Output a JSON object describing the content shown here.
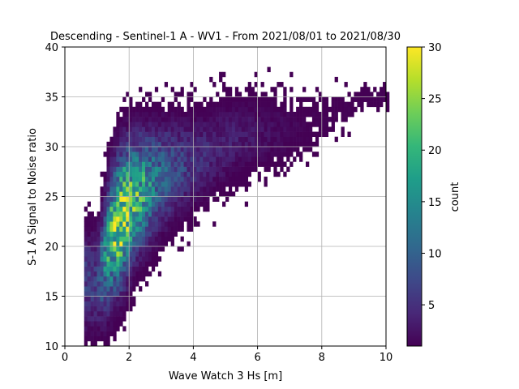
{
  "chart_data": {
    "type": "heatmap",
    "title": "Descending - Sentinel-1 A - WV1 - From 2021/08/01 to 2021/08/30",
    "xlabel": "Wave Watch 3 Hs [m]",
    "ylabel": "S-1 A Signal to Noise ratio",
    "xlim": [
      0,
      10
    ],
    "ylim": [
      10,
      40
    ],
    "xticks": [
      0,
      2,
      4,
      6,
      8,
      10
    ],
    "yticks": [
      10,
      15,
      20,
      25,
      30,
      35,
      40
    ],
    "grid": true,
    "colormap": "viridis",
    "colorbar": {
      "label": "count",
      "min": 1,
      "max": 30,
      "ticks": [
        5,
        10,
        15,
        20,
        25,
        30
      ]
    },
    "bin_width": [
      0.1,
      0.5
    ],
    "density_ridge": [
      {
        "x": 1.0,
        "y_center": 16.5,
        "y_spread": 4.0,
        "peak_count": 6
      },
      {
        "x": 1.5,
        "y_center": 21.5,
        "y_spread": 5.0,
        "peak_count": 22
      },
      {
        "x": 1.8,
        "y_center": 23.0,
        "y_spread": 5.0,
        "peak_count": 27
      },
      {
        "x": 2.2,
        "y_center": 25.0,
        "y_spread": 4.5,
        "peak_count": 20
      },
      {
        "x": 3.0,
        "y_center": 27.0,
        "y_spread": 4.0,
        "peak_count": 10
      },
      {
        "x": 4.0,
        "y_center": 28.5,
        "y_spread": 3.5,
        "peak_count": 5
      },
      {
        "x": 5.5,
        "y_center": 31.0,
        "y_spread": 3.0,
        "peak_count": 3
      },
      {
        "x": 7.5,
        "y_center": 32.0,
        "y_spread": 2.5,
        "peak_count": 1
      },
      {
        "x": 9.5,
        "y_center": 35.0,
        "y_spread": 0.8,
        "peak_count": 1
      }
    ]
  }
}
